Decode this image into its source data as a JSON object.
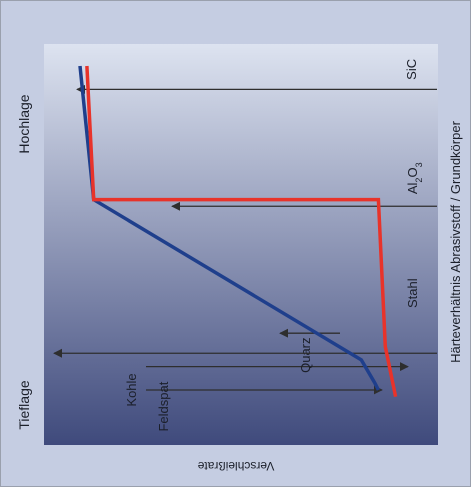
{
  "chart_data": {
    "type": "line",
    "title": "",
    "xlabel": "Härteverhältnis Abrasivstoff / Grundkörper",
    "ylabel": "Verschleißrate",
    "regions": [
      "Tieflage",
      "Hochlage"
    ],
    "ylim": [
      0,
      100
    ],
    "xlim": [
      0,
      100
    ],
    "series": [
      {
        "x": [
          3,
          5,
          12,
          60,
          100
        ],
        "values": [
          6,
          7,
          11,
          89,
          93
        ]
      },
      {
        "x": [
          1,
          16,
          60,
          60,
          100
        ],
        "values": [
          1,
          4,
          6,
          89,
          91
        ]
      }
    ],
    "markers": [
      {
        "label": "Kohle",
        "x": 3
      },
      {
        "label": "Feldspat",
        "x": 10
      },
      {
        "label": "Quarz",
        "x": 20
      },
      {
        "label": "Stahl",
        "x": 14
      },
      {
        "label": "Al2O3",
        "x": 58
      },
      {
        "label": "SiC",
        "x": 93
      }
    ]
  },
  "colors": {
    "frame_bg": "#c5cde2",
    "plot_bg_top": "#dde3f0",
    "plot_bg_bottom": "#3f4a7c",
    "series_blue": "#1f3f8c",
    "series_red": "#e8332a",
    "arrow": "#2e2e2e"
  }
}
